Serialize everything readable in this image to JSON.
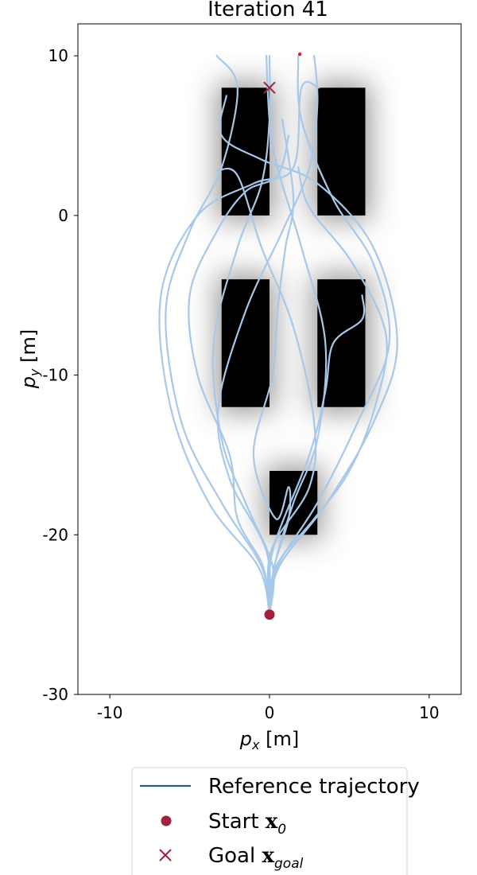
{
  "chart_data": {
    "type": "line",
    "title": "Iteration 41",
    "xlabel_var": "p",
    "xlabel_sub": "x",
    "xlabel_unit": " [m]",
    "ylabel_var": "p",
    "ylabel_sub": "y",
    "ylabel_unit": " [m]",
    "xlim": [
      -12,
      12
    ],
    "ylim": [
      -30,
      12
    ],
    "xticks": [
      -10,
      0,
      10
    ],
    "yticks": [
      10,
      0,
      -10,
      -20,
      -30
    ],
    "xtick_labels": [
      "-10",
      "0",
      "10"
    ],
    "ytick_labels": [
      "10",
      "0",
      "-10",
      "-20",
      "-30"
    ],
    "grid": false,
    "legend_placement": "bottom",
    "obstacles": [
      {
        "x": [
          -3,
          0
        ],
        "y": [
          0,
          8
        ]
      },
      {
        "x": [
          3,
          6
        ],
        "y": [
          0,
          8
        ]
      },
      {
        "x": [
          -3,
          0
        ],
        "y": [
          -12,
          -4
        ]
      },
      {
        "x": [
          3,
          6
        ],
        "y": [
          -12,
          -4
        ]
      },
      {
        "x": [
          0,
          3
        ],
        "y": [
          -20,
          -16
        ]
      }
    ],
    "start": [
      0,
      -25
    ],
    "goal": [
      0,
      8
    ],
    "extra_point": [
      1.9,
      10.1
    ],
    "series": [
      {
        "name": "Reference trajectory",
        "points": [
          [
            0,
            -25
          ],
          [
            0.2,
            -22
          ],
          [
            -1.5,
            -18
          ],
          [
            -3,
            -14
          ],
          [
            -3.5,
            -8
          ],
          [
            -2,
            -2
          ],
          [
            -0.5,
            2
          ],
          [
            0,
            6
          ],
          [
            0,
            10
          ]
        ]
      },
      {
        "points": [
          [
            0,
            -25
          ],
          [
            0.3,
            -22
          ],
          [
            1.5,
            -18
          ],
          [
            3,
            -14
          ],
          [
            3.5,
            -8
          ],
          [
            2,
            -2
          ],
          [
            0.5,
            3
          ],
          [
            0,
            6
          ],
          [
            -0.2,
            10
          ]
        ]
      },
      {
        "points": [
          [
            0,
            -25
          ],
          [
            -0.5,
            -22
          ],
          [
            -3,
            -18
          ],
          [
            -5.5,
            -13
          ],
          [
            -6.5,
            -6
          ],
          [
            -5,
            -1
          ],
          [
            -3,
            3
          ],
          [
            -2,
            8
          ],
          [
            -3.3,
            10
          ]
        ]
      },
      {
        "points": [
          [
            0,
            -25
          ],
          [
            0.5,
            -22
          ],
          [
            3,
            -18
          ],
          [
            5.5,
            -13
          ],
          [
            7.5,
            -8
          ],
          [
            6.5,
            -3
          ],
          [
            4,
            1
          ],
          [
            2,
            6
          ],
          [
            1.8,
            10
          ]
        ]
      },
      {
        "points": [
          [
            0,
            -25
          ],
          [
            -0.7,
            -22
          ],
          [
            -3.8,
            -18
          ],
          [
            -6.2,
            -12
          ],
          [
            -6.8,
            -5
          ],
          [
            -4.5,
            0
          ],
          [
            -1,
            2
          ],
          [
            1.5,
            3
          ],
          [
            2,
            8
          ],
          [
            3.1,
            8
          ]
        ]
      },
      {
        "points": [
          [
            0,
            -25
          ],
          [
            0.6,
            -22
          ],
          [
            3.6,
            -18
          ],
          [
            6.5,
            -13
          ],
          [
            8,
            -8
          ],
          [
            6.5,
            -2
          ],
          [
            3,
            2
          ],
          [
            -0.5,
            3.5
          ],
          [
            -3,
            5
          ],
          [
            -2.7,
            7.5
          ]
        ]
      },
      {
        "points": [
          [
            0,
            -25
          ],
          [
            0.1,
            -21
          ],
          [
            2.5,
            -17
          ],
          [
            2.8,
            -13
          ],
          [
            1.5,
            -7
          ],
          [
            -0.5,
            -2
          ],
          [
            -2,
            2.5
          ],
          [
            -3.3,
            2.8
          ]
        ]
      },
      {
        "points": [
          [
            0,
            -25
          ],
          [
            -0.2,
            -21
          ],
          [
            -2.5,
            -16.5
          ],
          [
            -3.2,
            -12
          ],
          [
            -1.5,
            -6
          ],
          [
            0.8,
            -1
          ],
          [
            2.5,
            3
          ],
          [
            3,
            7
          ],
          [
            2.8,
            10
          ]
        ]
      },
      {
        "points": [
          [
            0,
            -25
          ],
          [
            -0.4,
            -22
          ],
          [
            -2,
            -19
          ],
          [
            -2.5,
            -15
          ],
          [
            -4.5,
            -10
          ],
          [
            -5,
            -5
          ],
          [
            -3.3,
            -1
          ],
          [
            -1.5,
            1.5
          ],
          [
            0.5,
            2.5
          ],
          [
            1.2,
            5
          ]
        ]
      },
      {
        "points": [
          [
            0,
            -25
          ],
          [
            0.3,
            -22
          ],
          [
            1.2,
            -19
          ],
          [
            1.2,
            -17
          ],
          [
            0.4,
            -19
          ],
          [
            -1,
            -15
          ],
          [
            0.2,
            -10
          ],
          [
            0.5,
            -6
          ],
          [
            1,
            -2
          ],
          [
            1.5,
            1
          ],
          [
            0.8,
            6
          ]
        ]
      },
      {
        "points": [
          [
            0,
            -25
          ],
          [
            0.4,
            -22
          ],
          [
            2.8,
            -19
          ],
          [
            5,
            -16
          ],
          [
            6.6,
            -12
          ],
          [
            7.3,
            -7.5
          ],
          [
            5.2,
            -3
          ],
          [
            2.5,
            0.5
          ],
          [
            1.8,
            3
          ]
        ]
      },
      {
        "points": [
          [
            0,
            -25
          ],
          [
            0.2,
            -21
          ],
          [
            2.5,
            -15
          ],
          [
            3.5,
            -11
          ],
          [
            4,
            -8
          ],
          [
            5.8,
            -6.5
          ],
          [
            5.8,
            -5
          ]
        ]
      }
    ],
    "legend": [
      {
        "kind": "line",
        "label": "Reference trajectory"
      },
      {
        "kind": "dot",
        "label_text": "Start ",
        "label_math": "x",
        "label_sub": "0"
      },
      {
        "kind": "cross",
        "label_text": "Goal ",
        "label_math": "x",
        "label_sub": "goal"
      }
    ],
    "colors": {
      "trajectory": "#a7c8e8",
      "legend_line": "#1f5f8f",
      "marker": "#a3213a",
      "obstacle": "#000000",
      "halo": "#888888"
    }
  }
}
